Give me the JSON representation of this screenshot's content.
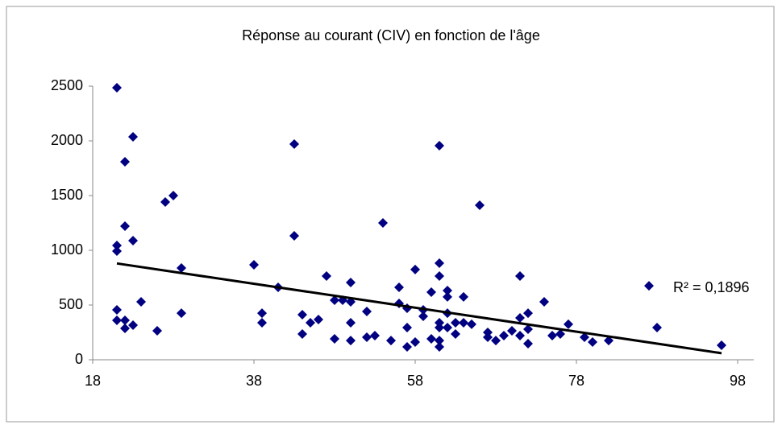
{
  "chart_data": {
    "type": "scatter",
    "title": "Réponse au courant (CIV) en fonction de l'âge",
    "series": [
      {
        "color": "#000080",
        "x": [
          21,
          21,
          21,
          21,
          21,
          22,
          22,
          22,
          22,
          23,
          23,
          23,
          24,
          26,
          27,
          28,
          29,
          29,
          38,
          39,
          39,
          41,
          43,
          43,
          44,
          44,
          45,
          46,
          47,
          48,
          48,
          49,
          50,
          50,
          50,
          50,
          52,
          52,
          53,
          54,
          55,
          56,
          56,
          57,
          57,
          57,
          58,
          58,
          59,
          59,
          60,
          60,
          61,
          61,
          61,
          61,
          61,
          61,
          61,
          62,
          62,
          62,
          62,
          63,
          63,
          64,
          64,
          65,
          66,
          67,
          67,
          68,
          69,
          70,
          71,
          71,
          71,
          72,
          72,
          72,
          74,
          75,
          76,
          77,
          79,
          80,
          82,
          87,
          88,
          96
        ],
        "y": [
          2485,
          1044,
          993,
          456,
          360,
          1809,
          1221,
          360,
          287,
          2037,
          1088,
          316,
          529,
          265,
          1441,
          1500,
          838,
          426,
          868,
          426,
          338,
          662,
          1971,
          1132,
          412,
          235,
          338,
          368,
          765,
          544,
          191,
          544,
          706,
          529,
          338,
          176,
          441,
          206,
          221,
          1250,
          176,
          662,
          515,
          471,
          294,
          118,
          824,
          162,
          456,
          397,
          618,
          191,
          1956,
          882,
          765,
          338,
          294,
          176,
          118,
          632,
          574,
          426,
          294,
          338,
          235,
          574,
          338,
          324,
          1412,
          250,
          206,
          176,
          221,
          265,
          765,
          382,
          221,
          426,
          279,
          147,
          529,
          221,
          235,
          324,
          206,
          162,
          176,
          676,
          294,
          132
        ]
      }
    ],
    "trendline": {
      "color": "#000000",
      "x": [
        21,
        96
      ],
      "y": [
        880,
        60
      ]
    },
    "annotation": "R² = 0,1896",
    "xlim": [
      18,
      98
    ],
    "xticks": [
      18,
      38,
      58,
      78,
      98
    ],
    "ylim": [
      0,
      2500
    ],
    "yticks": [
      0,
      500,
      1000,
      1500,
      2000,
      2500
    ]
  }
}
